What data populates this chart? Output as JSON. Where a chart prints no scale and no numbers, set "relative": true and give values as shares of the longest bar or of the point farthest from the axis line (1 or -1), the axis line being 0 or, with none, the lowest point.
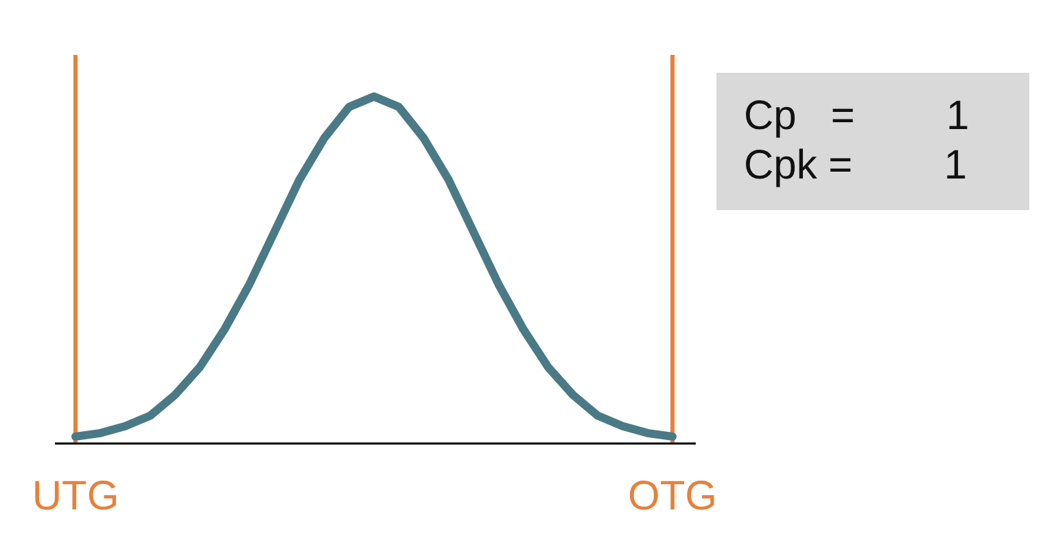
{
  "chart_data": {
    "type": "line",
    "relative": true,
    "categories": [
      "UTG",
      null,
      null,
      null,
      null,
      null,
      null,
      null,
      null,
      null,
      null,
      null,
      null,
      null,
      null,
      null,
      null,
      null,
      null,
      null,
      null,
      null,
      null,
      null,
      "OTG"
    ],
    "series": [
      {
        "color": "#4a7a86",
        "values": [
          0.02,
          0.03,
          0.05,
          0.08,
          0.14,
          0.22,
          0.33,
          0.46,
          0.61,
          0.76,
          0.88,
          0.97,
          1,
          0.97,
          0.88,
          0.76,
          0.61,
          0.46,
          0.33,
          0.22,
          0.14,
          0.08,
          0.05,
          0.03,
          0.02
        ]
      }
    ],
    "marker": "none",
    "line_style": "solid",
    "ref_lines": [
      {
        "axis": "x",
        "value": "UTG",
        "color": "#e8803a"
      },
      {
        "axis": "x",
        "value": "OTG",
        "color": "#e8803a"
      }
    ],
    "annotations": [
      "Cp   =        1",
      "Cpk =        1"
    ]
  }
}
